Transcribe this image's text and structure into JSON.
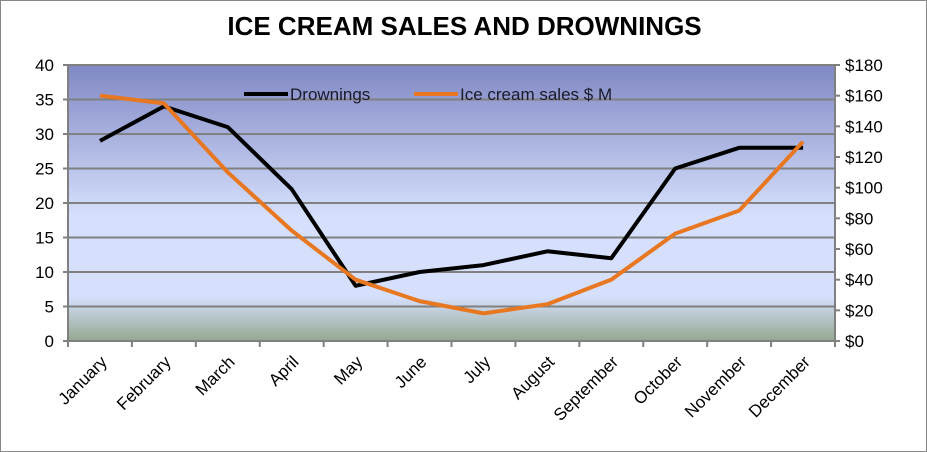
{
  "chart_data": {
    "type": "line",
    "title": "ICE CREAM SALES AND DROWNINGS",
    "categories": [
      "January",
      "February",
      "March",
      "April",
      "May",
      "June",
      "July",
      "August",
      "September",
      "October",
      "November",
      "December"
    ],
    "series": [
      {
        "name": "Drownings",
        "axis": "left",
        "color": "#000000",
        "values": [
          29,
          34,
          31,
          22,
          8,
          10,
          11,
          13,
          12,
          25,
          28,
          28
        ]
      },
      {
        "name": "Ice cream sales $ M",
        "axis": "right",
        "color": "#e87722",
        "values": [
          160,
          155,
          110,
          72,
          40,
          26,
          18,
          24,
          40,
          70,
          85,
          130
        ]
      }
    ],
    "y_left": {
      "range": [
        0,
        40
      ],
      "ticks": [
        "0",
        "5",
        "10",
        "15",
        "20",
        "25",
        "30",
        "35",
        "40"
      ]
    },
    "y_right": {
      "range": [
        0,
        180
      ],
      "ticks": [
        "$0",
        "$20",
        "$40",
        "$60",
        "$80",
        "$100",
        "$120",
        "$140",
        "$160",
        "$180"
      ]
    },
    "grid": true,
    "legend": "top-center",
    "background": {
      "top": "#8088c4",
      "middle": "#d6e0fc",
      "bottom": "#94a890"
    }
  }
}
